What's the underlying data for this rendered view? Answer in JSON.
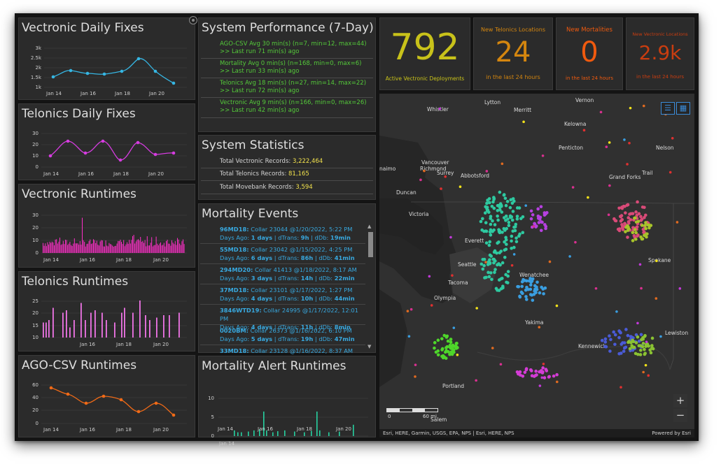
{
  "colors": {
    "vectronic_fixes": "#36b6e3",
    "telonics_fixes": "#d63ce0",
    "vectronic_runtimes": "#ff2fc8",
    "telonics_runtimes": "#ef74e6",
    "ago_runtimes": "#f06a17",
    "mortality_runtimes": "#27d1a0",
    "perf_text": "#54c93a",
    "stat_value": "#f3e34d",
    "mortality_text": "#38a9e0"
  },
  "charts": {
    "vectronic_fixes": {
      "title": "Vectronic Daily Fixes",
      "yticks": [
        "3k",
        "2.5k",
        "2k",
        "1.5k",
        "1k"
      ],
      "xticks": [
        "Jan 14",
        "Jan 16",
        "Jan 18",
        "Jan 20"
      ]
    },
    "telonics_fixes": {
      "title": "Telonics Daily Fixes",
      "yticks": [
        "30",
        "20",
        "10",
        "0"
      ],
      "xticks": [
        "Jan 14",
        "Jan 16",
        "Jan 18",
        "Jan 20"
      ]
    },
    "vectronic_runtimes": {
      "title": "Vectronic Runtimes",
      "yticks": [
        "30",
        "20",
        "10",
        "0"
      ],
      "xticks": [
        "Jan 14",
        "Jan 16",
        "Jan 18",
        "Jan 20"
      ]
    },
    "telonics_runtimes": {
      "title": "Telonics Runtimes",
      "yticks": [
        "25",
        "20",
        "15",
        "10"
      ],
      "xticks": [
        "Jan 16",
        "Jan 18",
        "Jan 20"
      ]
    },
    "ago_runtimes": {
      "title": "AGO-CSV Runtimes",
      "yticks": [
        "60",
        "40",
        "20",
        "0"
      ],
      "xticks": [
        "Jan 14",
        "Jan 16",
        "Jan 18",
        "Jan 20"
      ]
    },
    "mortality_runtimes": {
      "title": "Mortality Alert Runtimes",
      "yticks": [
        "10",
        "5",
        "0"
      ],
      "xticks": [
        "Jan 14",
        "Jan 16",
        "Jan 18",
        "Jan 20"
      ]
    }
  },
  "chart_data": [
    {
      "type": "line",
      "title": "Vectronic Daily Fixes",
      "x": [
        "Jan 14",
        "Jan 15",
        "Jan 16",
        "Jan 17",
        "Jan 18",
        "Jan 19",
        "Jan 20",
        "Jan 21"
      ],
      "values": [
        1500,
        1900,
        1750,
        1700,
        1850,
        2500,
        1800,
        1250
      ],
      "ylim": [
        1000,
        3000
      ]
    },
    {
      "type": "line",
      "title": "Telonics Daily Fixes",
      "x": [
        "Jan 14",
        "Jan 15",
        "Jan 16",
        "Jan 17",
        "Jan 18",
        "Jan 19",
        "Jan 20",
        "Jan 21"
      ],
      "values": [
        10,
        23,
        12,
        23,
        6,
        22,
        11,
        13
      ],
      "ylim": [
        0,
        30
      ]
    },
    {
      "type": "bar",
      "title": "Vectronic Runtimes",
      "ylim": [
        0,
        30
      ],
      "series_shape": "dense"
    },
    {
      "type": "bar",
      "title": "Telonics Runtimes",
      "ylim": [
        10,
        25
      ],
      "series_shape": "sparse"
    },
    {
      "type": "line",
      "title": "AGO-CSV Runtimes",
      "x": [
        "Jan 14",
        "Jan 15",
        "Jan 16",
        "Jan 17",
        "Jan 18",
        "Jan 19",
        "Jan 20",
        "Jan 21"
      ],
      "values": [
        54,
        44,
        31,
        41,
        35,
        17,
        31,
        13
      ],
      "ylim": [
        0,
        60
      ]
    },
    {
      "type": "bar",
      "title": "Mortality Alert Runtimes",
      "ylim": [
        0,
        10
      ],
      "series_shape": "sparse"
    }
  ],
  "performance": {
    "title": "System Performance (7-Day)",
    "items": [
      {
        "line1": "AGO-CSV Avg 30 min(s) (n=7, min=12, max=44)",
        "line2": ">> Last run 71 min(s) ago"
      },
      {
        "line1": "Mortality Avg 0 min(s) (n=168, min=0, max=6)",
        "line2": ">> Last run 33 min(s) ago"
      },
      {
        "line1": "Telonics Avg 18 min(s) (n=27, min=14, max=22)",
        "line2": ">> Last run 72 min(s) ago"
      },
      {
        "line1": "Vectronic Avg 9 min(s) (n=166, min=0, max=26)",
        "line2": ">> Last run 42 min(s) ago"
      }
    ]
  },
  "statistics": {
    "title": "System Statistics",
    "items": [
      {
        "label": "Total Vectronic Records: ",
        "value": "3,222,464"
      },
      {
        "label": "Total Telonics Records: ",
        "value": "81,165"
      },
      {
        "label": "Total Movebank Records: ",
        "value": "3,594"
      }
    ]
  },
  "mortality": {
    "title": "Mortality Events",
    "items": [
      {
        "id": "96MD18:",
        "desc": " Collar 23044 @1/20/2022, 5:22 PM",
        "days": "1 days",
        "dtrans": "9h",
        "ddb": "19min"
      },
      {
        "id": "55MD18:",
        "desc": " Collar 23042 @1/15/2022, 4:25 PM",
        "days": "6 days",
        "dtrans": "86h",
        "ddb": "41min"
      },
      {
        "id": "294MD20:",
        "desc": " Collar 41413 @1/18/2022, 8:17 AM",
        "days": "3 days",
        "dtrans": "14h",
        "ddb": "22min"
      },
      {
        "id": "37MD18:",
        "desc": " Collar 23101 @1/17/2022, 1:27 PM",
        "days": "4 days",
        "dtrans": "10h",
        "ddb": "44min"
      },
      {
        "id": "3846WTD19:",
        "desc": " Collar 24995 @1/17/2022, 12:01 PM",
        "days": "4 days",
        "dtrans": "11h",
        "ddb": "8min"
      },
      {
        "id": "0020BM:",
        "desc": " Collar 26373 @1/16/2022, 6:10 PM",
        "days": "5 days",
        "dtrans": "19h",
        "ddb": "47min"
      },
      {
        "id": "33MD18:",
        "desc": " Collar 23128 @1/16/2022, 8:37 AM",
        "days": "",
        "dtrans": "",
        "ddb": ""
      }
    ],
    "labels": {
      "days_ago": "Days Ago: ",
      "dtrans": " | dTrans: ",
      "ddb": " | dDb: "
    }
  },
  "kpis": {
    "deployments": {
      "value": "792",
      "label": "Active Vectronic Deployments",
      "color": "#c8c21a"
    },
    "telonics": {
      "top": "New Telonics Locations",
      "value": "24",
      "bottom": "in the last 24 hours",
      "color": "#d4860f"
    },
    "mortalities": {
      "top": "New Mortalities",
      "value": "0",
      "bottom": "in the last 24 hours",
      "color": "#f05a0e"
    },
    "vectronic_locations": {
      "top": "New Vectronic Locations",
      "value": "2.9k",
      "bottom": "in the last 24 hours",
      "color": "#c93d10"
    }
  },
  "map": {
    "cities": [
      "Vernon",
      "Lytton",
      "Whistler",
      "Merritt",
      "Kelowna",
      "Penticton",
      "Nelson",
      "Vancouver",
      "Richmond",
      "Surrey",
      "Abbotsford",
      "Grand Forks",
      "Trail",
      "naimo",
      "Duncan",
      "Victoria",
      "Everett",
      "Seattle",
      "Wenatchee",
      "Spokane",
      "Tacoma",
      "Olympia",
      "Yakima",
      "Kennewick",
      "Lewiston",
      "Portland",
      "Salem"
    ],
    "scale": {
      "left": "0",
      "right": "60 mi"
    },
    "attribution": "Esri, HERE, Garmin, USGS, EPA, NPS | Esri, HERE, NPS",
    "powered": "Powered by Esri",
    "zoom_in": "+",
    "zoom_out": "−"
  }
}
